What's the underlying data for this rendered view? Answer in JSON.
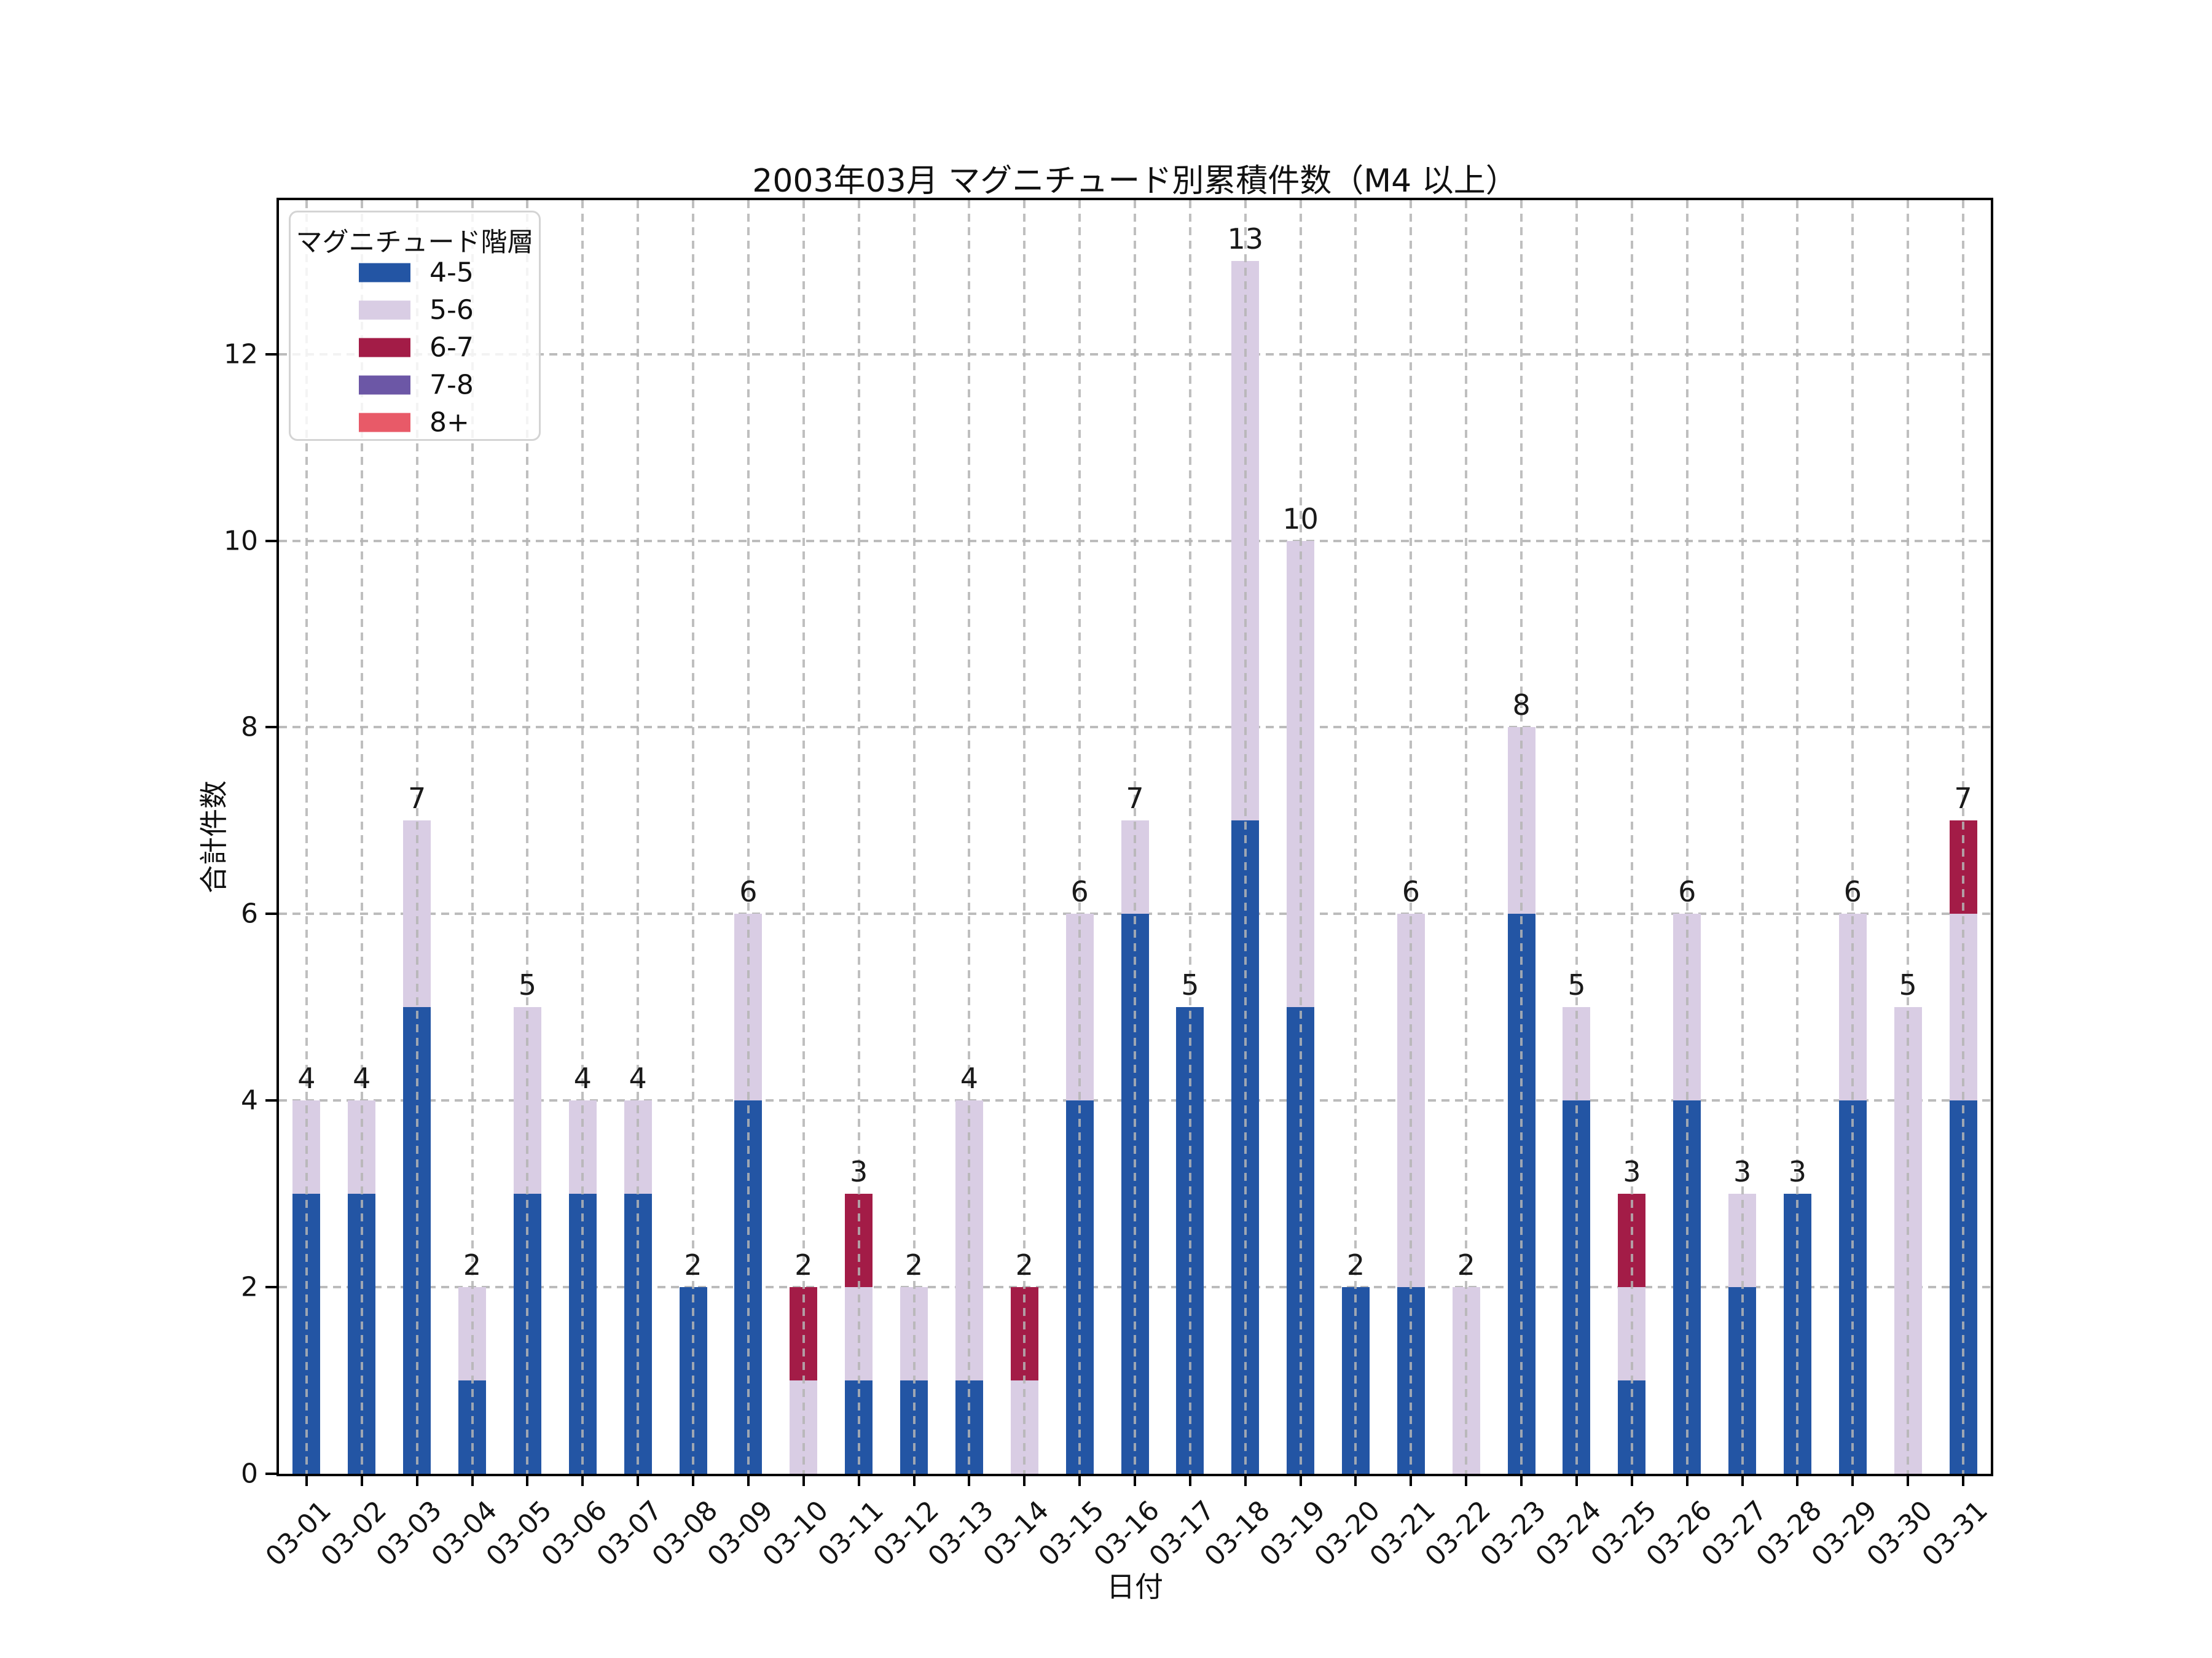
{
  "title": "2003年03月 マグニチュード別累積件数（M4 以上）",
  "chart_data": {
    "type": "bar",
    "stacked": true,
    "title": "2003年03月 マグニチュード別累積件数（M4 以上）",
    "xlabel": "日付",
    "ylabel": "合計件数",
    "categories": [
      "03-01",
      "03-02",
      "03-03",
      "03-04",
      "03-05",
      "03-06",
      "03-07",
      "03-08",
      "03-09",
      "03-10",
      "03-11",
      "03-12",
      "03-13",
      "03-14",
      "03-15",
      "03-16",
      "03-17",
      "03-18",
      "03-19",
      "03-20",
      "03-21",
      "03-22",
      "03-23",
      "03-24",
      "03-25",
      "03-26",
      "03-27",
      "03-28",
      "03-29",
      "03-30",
      "03-31"
    ],
    "series": [
      {
        "name": "4-5",
        "color": "#2355A4",
        "values": [
          3,
          3,
          5,
          1,
          3,
          3,
          3,
          2,
          4,
          0,
          1,
          1,
          1,
          0,
          4,
          6,
          5,
          7,
          5,
          2,
          2,
          0,
          6,
          4,
          1,
          4,
          2,
          3,
          4,
          0,
          4
        ]
      },
      {
        "name": "5-6",
        "color": "#D9CDE4",
        "values": [
          1,
          1,
          2,
          1,
          2,
          1,
          1,
          0,
          2,
          1,
          1,
          1,
          3,
          1,
          2,
          1,
          0,
          6,
          5,
          0,
          4,
          2,
          2,
          1,
          1,
          2,
          1,
          0,
          2,
          5,
          2
        ]
      },
      {
        "name": "6-7",
        "color": "#A31C47",
        "values": [
          0,
          0,
          0,
          0,
          0,
          0,
          0,
          0,
          0,
          1,
          1,
          0,
          0,
          1,
          0,
          0,
          0,
          0,
          0,
          0,
          0,
          0,
          0,
          0,
          1,
          0,
          0,
          0,
          0,
          0,
          1
        ]
      },
      {
        "name": "7-8",
        "color": "#6C57A6",
        "values": [
          0,
          0,
          0,
          0,
          0,
          0,
          0,
          0,
          0,
          0,
          0,
          0,
          0,
          0,
          0,
          0,
          0,
          0,
          0,
          0,
          0,
          0,
          0,
          0,
          0,
          0,
          0,
          0,
          0,
          0,
          0
        ]
      },
      {
        "name": "8+",
        "color": "#E85A68",
        "values": [
          0,
          0,
          0,
          0,
          0,
          0,
          0,
          0,
          0,
          0,
          0,
          0,
          0,
          0,
          0,
          0,
          0,
          0,
          0,
          0,
          0,
          0,
          0,
          0,
          0,
          0,
          0,
          0,
          0,
          0,
          0
        ]
      }
    ],
    "totals": [
      4,
      4,
      7,
      2,
      5,
      4,
      4,
      2,
      6,
      2,
      3,
      2,
      4,
      2,
      6,
      7,
      5,
      13,
      10,
      2,
      6,
      2,
      8,
      5,
      3,
      6,
      3,
      3,
      6,
      5,
      7
    ],
    "yticks": [
      0,
      2,
      4,
      6,
      8,
      10,
      12
    ],
    "ylim": [
      0,
      13.65
    ],
    "grid": "dashed, both axes",
    "legend": {
      "title": "マグニチュード階層",
      "position": "upper left",
      "labels": [
        "4-5",
        "5-6",
        "6-7",
        "7-8",
        "8+"
      ]
    },
    "colors": {
      "bar_label": "#1a1a1a",
      "grid": "#bcbcbc",
      "spine": "#000000",
      "background": "#ffffff"
    }
  }
}
